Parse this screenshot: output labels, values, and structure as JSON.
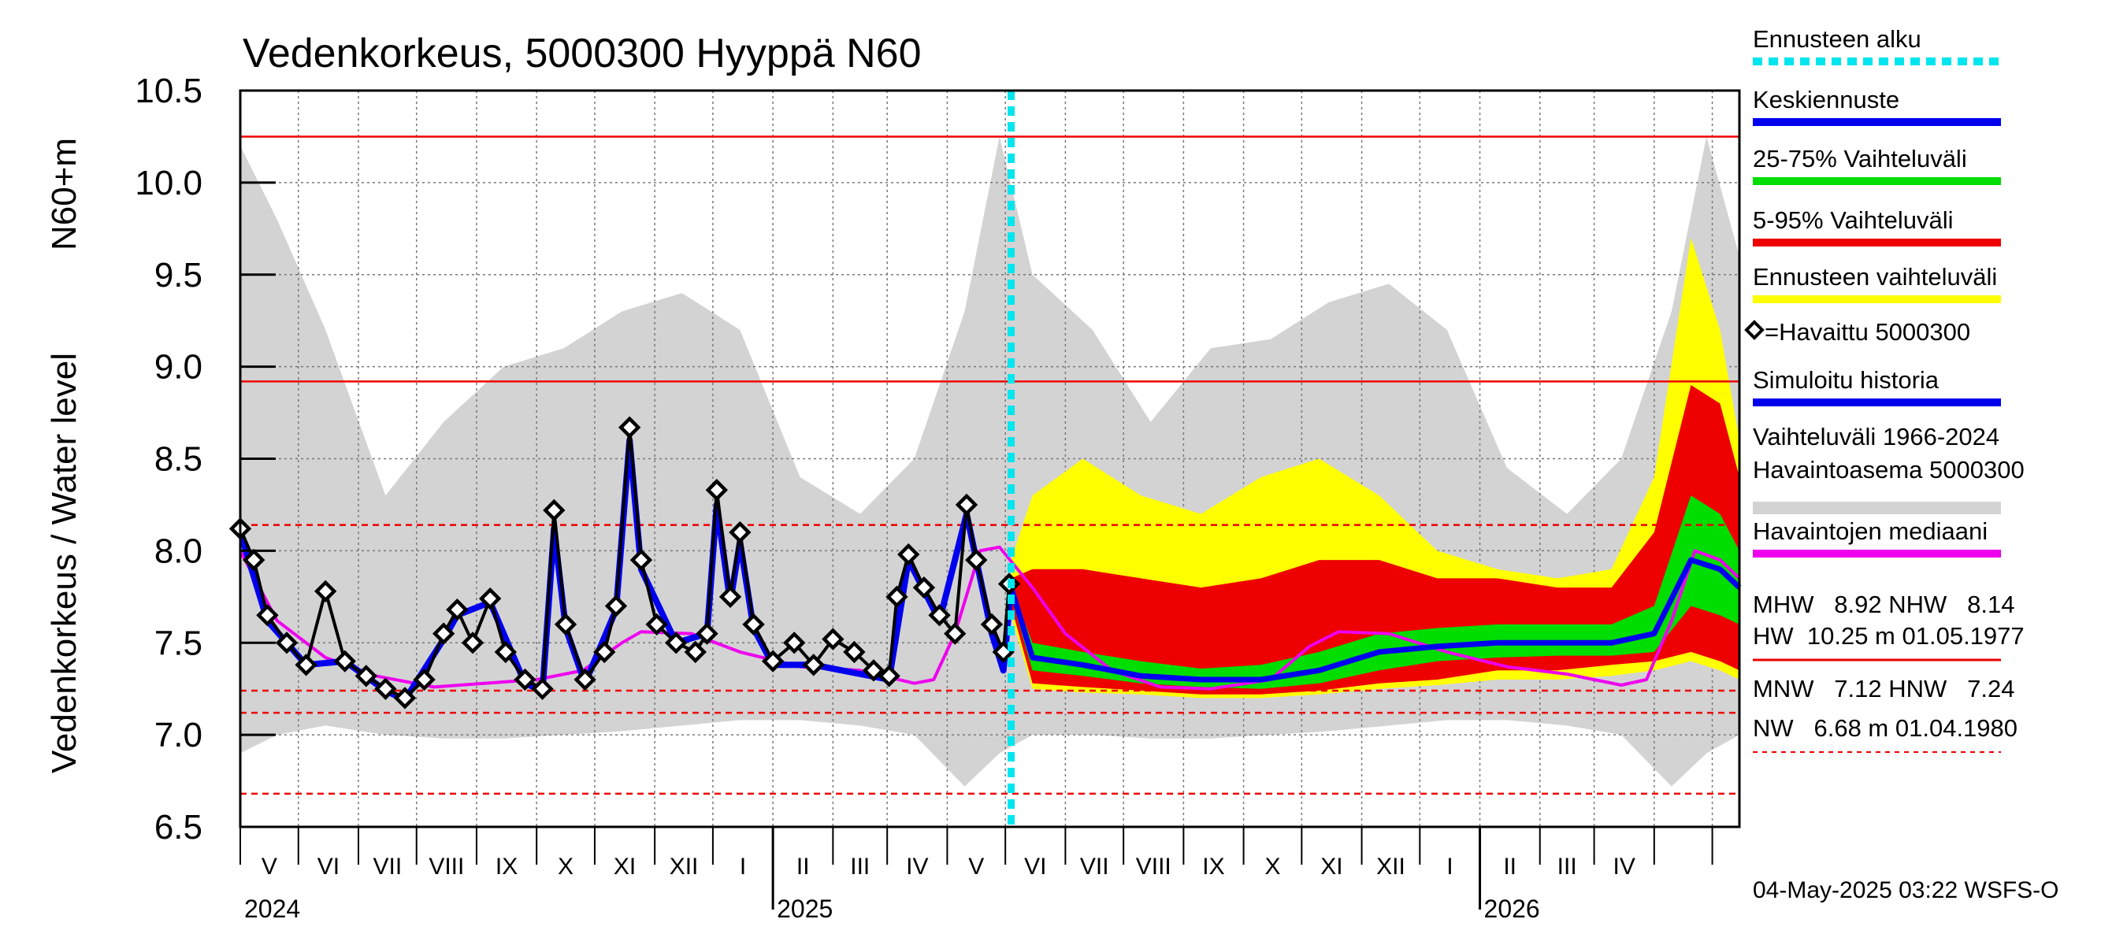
{
  "chart_data": {
    "type": "line",
    "title": "Vedenkorkeus, 5000300 Hyyppä N60",
    "ylabel": "Vedenkorkeus / Water level",
    "yunit": "N60+m",
    "ylim": [
      6.5,
      10.5
    ],
    "yticks": [
      "6.5",
      "7.0",
      "7.5",
      "8.0",
      "8.5",
      "9.0",
      "9.5",
      "10.0",
      "10.5"
    ],
    "xlim": [
      "2024-04-01",
      "2026-05-15"
    ],
    "grid": true,
    "forecast_start": "2025-05-04",
    "months": [
      "V",
      "VI",
      "VII",
      "VIII",
      "IX",
      "X",
      "XI",
      "XII",
      "I",
      "II",
      "III",
      "IV",
      "V",
      "VI",
      "VII",
      "VIII",
      "IX",
      "X",
      "XI",
      "XII",
      "I",
      "II",
      "III",
      "IV"
    ],
    "years": [
      "2024",
      "2025",
      "2026"
    ],
    "reference_lines": [
      {
        "name": "HW",
        "value": 10.25,
        "style": "solid"
      },
      {
        "name": "MHW",
        "value": 8.92,
        "style": "solid"
      },
      {
        "name": "NHW",
        "value": 8.14,
        "style": "dashed"
      },
      {
        "name": "HNW",
        "value": 7.24,
        "style": "dashed"
      },
      {
        "name": "MNW",
        "value": 7.12,
        "style": "dashed"
      },
      {
        "name": "NW",
        "value": 6.68,
        "style": "dashed"
      }
    ],
    "observed": [
      [
        "2024-04-01",
        8.12
      ],
      [
        "2024-04-08",
        7.95
      ],
      [
        "2024-04-15",
        7.65
      ],
      [
        "2024-04-25",
        7.5
      ],
      [
        "2024-05-05",
        7.38
      ],
      [
        "2024-05-15",
        7.78
      ],
      [
        "2024-05-25",
        7.4
      ],
      [
        "2024-06-05",
        7.32
      ],
      [
        "2024-06-15",
        7.25
      ],
      [
        "2024-06-25",
        7.2
      ],
      [
        "2024-07-05",
        7.3
      ],
      [
        "2024-07-15",
        7.55
      ],
      [
        "2024-07-22",
        7.68
      ],
      [
        "2024-07-30",
        7.5
      ],
      [
        "2024-08-08",
        7.74
      ],
      [
        "2024-08-16",
        7.45
      ],
      [
        "2024-08-26",
        7.3
      ],
      [
        "2024-09-04",
        7.25
      ],
      [
        "2024-09-10",
        8.22
      ],
      [
        "2024-09-16",
        7.6
      ],
      [
        "2024-09-26",
        7.3
      ],
      [
        "2024-10-06",
        7.45
      ],
      [
        "2024-10-12",
        7.7
      ],
      [
        "2024-10-19",
        8.67
      ],
      [
        "2024-10-25",
        7.95
      ],
      [
        "2024-11-02",
        7.6
      ],
      [
        "2024-11-12",
        7.5
      ],
      [
        "2024-11-22",
        7.45
      ],
      [
        "2024-11-28",
        7.55
      ],
      [
        "2024-12-03",
        8.33
      ],
      [
        "2024-12-10",
        7.75
      ],
      [
        "2024-12-15",
        8.1
      ],
      [
        "2024-12-22",
        7.6
      ],
      [
        "2025-01-01",
        7.4
      ],
      [
        "2025-01-12",
        7.5
      ],
      [
        "2025-01-22",
        7.38
      ],
      [
        "2025-02-01",
        7.52
      ],
      [
        "2025-02-12",
        7.45
      ],
      [
        "2025-02-22",
        7.35
      ],
      [
        "2025-03-02",
        7.32
      ],
      [
        "2025-03-06",
        7.75
      ],
      [
        "2025-03-12",
        7.98
      ],
      [
        "2025-03-20",
        7.8
      ],
      [
        "2025-03-28",
        7.65
      ],
      [
        "2025-04-05",
        7.55
      ],
      [
        "2025-04-11",
        8.25
      ],
      [
        "2025-04-16",
        7.95
      ],
      [
        "2025-04-24",
        7.6
      ],
      [
        "2025-04-30",
        7.45
      ],
      [
        "2025-05-03",
        7.82
      ]
    ],
    "simulated": [
      [
        "2024-04-01",
        8.1
      ],
      [
        "2024-04-15",
        7.62
      ],
      [
        "2024-05-05",
        7.38
      ],
      [
        "2024-05-25",
        7.4
      ],
      [
        "2024-06-15",
        7.24
      ],
      [
        "2024-06-25",
        7.19
      ],
      [
        "2024-07-15",
        7.52
      ],
      [
        "2024-07-22",
        7.65
      ],
      [
        "2024-08-08",
        7.72
      ],
      [
        "2024-08-26",
        7.28
      ],
      [
        "2024-09-04",
        7.24
      ],
      [
        "2024-09-10",
        8.12
      ],
      [
        "2024-09-16",
        7.58
      ],
      [
        "2024-09-26",
        7.28
      ],
      [
        "2024-10-12",
        7.68
      ],
      [
        "2024-10-19",
        8.6
      ],
      [
        "2024-10-25",
        7.9
      ],
      [
        "2024-11-12",
        7.5
      ],
      [
        "2024-11-28",
        7.55
      ],
      [
        "2024-12-03",
        8.25
      ],
      [
        "2024-12-10",
        7.72
      ],
      [
        "2024-12-15",
        8.05
      ],
      [
        "2024-12-22",
        7.58
      ],
      [
        "2025-01-01",
        7.38
      ],
      [
        "2025-01-22",
        7.38
      ],
      [
        "2025-03-02",
        7.3
      ],
      [
        "2025-03-12",
        7.95
      ],
      [
        "2025-03-28",
        7.62
      ],
      [
        "2025-04-11",
        8.2
      ],
      [
        "2025-04-24",
        7.55
      ],
      [
        "2025-04-30",
        7.35
      ],
      [
        "2025-05-04",
        7.8
      ]
    ],
    "median": [
      [
        "2024-04-01",
        8.0
      ],
      [
        "2024-04-20",
        7.62
      ],
      [
        "2024-05-15",
        7.42
      ],
      [
        "2024-06-10",
        7.32
      ],
      [
        "2024-07-10",
        7.26
      ],
      [
        "2024-08-05",
        7.28
      ],
      [
        "2024-09-01",
        7.3
      ],
      [
        "2024-09-25",
        7.35
      ],
      [
        "2024-10-15",
        7.5
      ],
      [
        "2024-10-25",
        7.56
      ],
      [
        "2024-11-20",
        7.55
      ],
      [
        "2024-12-15",
        7.45
      ],
      [
        "2025-01-15",
        7.37
      ],
      [
        "2025-02-15",
        7.35
      ],
      [
        "2025-03-15",
        7.28
      ],
      [
        "2025-03-25",
        7.3
      ],
      [
        "2025-04-05",
        7.55
      ],
      [
        "2025-04-18",
        8.0
      ],
      [
        "2025-04-28",
        8.02
      ],
      [
        "2025-05-15",
        7.8
      ],
      [
        "2025-06-01",
        7.55
      ],
      [
        "2025-06-25",
        7.35
      ],
      [
        "2025-07-20",
        7.26
      ],
      [
        "2025-08-15",
        7.25
      ],
      [
        "2025-09-15",
        7.3
      ],
      [
        "2025-10-05",
        7.48
      ],
      [
        "2025-10-20",
        7.56
      ],
      [
        "2025-11-15",
        7.55
      ],
      [
        "2025-12-15",
        7.45
      ],
      [
        "2026-01-15",
        7.37
      ],
      [
        "2026-02-15",
        7.33
      ],
      [
        "2026-03-15",
        7.27
      ],
      [
        "2026-03-28",
        7.3
      ],
      [
        "2026-04-10",
        7.62
      ],
      [
        "2026-04-22",
        8.0
      ],
      [
        "2026-05-05",
        7.95
      ],
      [
        "2026-05-15",
        7.85
      ]
    ],
    "forecast_mean": [
      [
        "2025-05-04",
        7.8
      ],
      [
        "2025-05-15",
        7.42
      ],
      [
        "2025-06-10",
        7.38
      ],
      [
        "2025-07-10",
        7.32
      ],
      [
        "2025-08-10",
        7.3
      ],
      [
        "2025-09-10",
        7.3
      ],
      [
        "2025-10-10",
        7.35
      ],
      [
        "2025-11-10",
        7.45
      ],
      [
        "2025-12-10",
        7.48
      ],
      [
        "2026-01-10",
        7.5
      ],
      [
        "2026-02-10",
        7.5
      ],
      [
        "2026-03-10",
        7.5
      ],
      [
        "2026-04-01",
        7.55
      ],
      [
        "2026-04-20",
        7.95
      ],
      [
        "2026-05-05",
        7.9
      ],
      [
        "2026-05-15",
        7.8
      ]
    ],
    "band_25_75": [
      [
        "2025-05-04",
        7.75,
        7.8
      ],
      [
        "2025-05-15",
        7.35,
        7.5
      ],
      [
        "2025-06-10",
        7.32,
        7.45
      ],
      [
        "2025-07-10",
        7.28,
        7.4
      ],
      [
        "2025-08-10",
        7.26,
        7.36
      ],
      [
        "2025-09-10",
        7.25,
        7.38
      ],
      [
        "2025-10-10",
        7.28,
        7.45
      ],
      [
        "2025-11-10",
        7.35,
        7.55
      ],
      [
        "2025-12-10",
        7.4,
        7.58
      ],
      [
        "2026-01-10",
        7.42,
        7.6
      ],
      [
        "2026-02-10",
        7.43,
        7.6
      ],
      [
        "2026-03-10",
        7.43,
        7.6
      ],
      [
        "2026-04-01",
        7.45,
        7.7
      ],
      [
        "2026-04-20",
        7.7,
        8.3
      ],
      [
        "2026-05-05",
        7.65,
        8.2
      ],
      [
        "2026-05-15",
        7.6,
        8.0
      ]
    ],
    "band_5_95": [
      [
        "2025-05-04",
        7.7,
        7.85
      ],
      [
        "2025-05-15",
        7.28,
        7.9
      ],
      [
        "2025-06-10",
        7.26,
        7.9
      ],
      [
        "2025-07-10",
        7.24,
        7.85
      ],
      [
        "2025-08-10",
        7.22,
        7.8
      ],
      [
        "2025-09-10",
        7.22,
        7.85
      ],
      [
        "2025-10-10",
        7.24,
        7.95
      ],
      [
        "2025-11-10",
        7.28,
        7.95
      ],
      [
        "2025-12-10",
        7.3,
        7.85
      ],
      [
        "2026-01-10",
        7.35,
        7.85
      ],
      [
        "2026-02-10",
        7.35,
        7.8
      ],
      [
        "2026-03-10",
        7.38,
        7.8
      ],
      [
        "2026-04-01",
        7.4,
        8.1
      ],
      [
        "2026-04-20",
        7.45,
        8.9
      ],
      [
        "2026-05-05",
        7.4,
        8.8
      ],
      [
        "2026-05-15",
        7.35,
        8.4
      ]
    ],
    "band_forecast": [
      [
        "2025-05-04",
        7.65,
        7.95
      ],
      [
        "2025-05-15",
        7.25,
        8.3
      ],
      [
        "2025-06-10",
        7.23,
        8.5
      ],
      [
        "2025-07-10",
        7.22,
        8.3
      ],
      [
        "2025-08-10",
        7.2,
        8.2
      ],
      [
        "2025-09-10",
        7.2,
        8.4
      ],
      [
        "2025-10-10",
        7.22,
        8.5
      ],
      [
        "2025-11-10",
        7.25,
        8.3
      ],
      [
        "2025-12-10",
        7.27,
        8.0
      ],
      [
        "2026-01-10",
        7.3,
        7.9
      ],
      [
        "2026-02-10",
        7.3,
        7.85
      ],
      [
        "2026-03-10",
        7.32,
        7.9
      ],
      [
        "2026-04-01",
        7.35,
        8.4
      ],
      [
        "2026-04-20",
        7.4,
        9.7
      ],
      [
        "2026-05-05",
        7.35,
        9.2
      ],
      [
        "2026-05-15",
        7.3,
        8.6
      ]
    ],
    "history_band": [
      [
        "2024-04-01",
        6.9,
        10.2
      ],
      [
        "2024-04-20",
        7.0,
        9.8
      ],
      [
        "2024-05-15",
        7.05,
        9.2
      ],
      [
        "2024-06-15",
        7.0,
        8.3
      ],
      [
        "2024-07-15",
        6.98,
        8.7
      ],
      [
        "2024-08-15",
        6.98,
        9.0
      ],
      [
        "2024-09-15",
        7.0,
        9.1
      ],
      [
        "2024-10-15",
        7.02,
        9.3
      ],
      [
        "2024-11-15",
        7.05,
        9.4
      ],
      [
        "2024-12-15",
        7.08,
        9.2
      ],
      [
        "2025-01-15",
        7.08,
        8.4
      ],
      [
        "2025-02-15",
        7.05,
        8.2
      ],
      [
        "2025-03-15",
        7.0,
        8.5
      ],
      [
        "2025-04-10",
        6.72,
        9.3
      ],
      [
        "2025-04-28",
        6.9,
        10.25
      ],
      [
        "2025-05-15",
        7.0,
        9.5
      ],
      [
        "2025-06-15",
        7.0,
        9.2
      ],
      [
        "2025-07-15",
        6.98,
        8.7
      ],
      [
        "2025-08-15",
        6.98,
        9.1
      ],
      [
        "2025-09-15",
        7.0,
        9.15
      ],
      [
        "2025-10-15",
        7.02,
        9.35
      ],
      [
        "2025-11-15",
        7.05,
        9.45
      ],
      [
        "2025-12-15",
        7.08,
        9.2
      ],
      [
        "2026-01-15",
        7.08,
        8.45
      ],
      [
        "2026-02-15",
        7.05,
        8.2
      ],
      [
        "2026-03-15",
        7.0,
        8.5
      ],
      [
        "2026-04-10",
        6.72,
        9.3
      ],
      [
        "2026-04-28",
        6.9,
        10.25
      ],
      [
        "2026-05-15",
        7.0,
        9.6
      ]
    ],
    "legend": [
      {
        "label": "Ennusteen alku",
        "color": "#00e5ee",
        "style": "dotted"
      },
      {
        "label": "Keskiennuste",
        "color": "#0000ee",
        "style": "solid"
      },
      {
        "label": "25-75% Vaihteluväli",
        "color": "#00dd00",
        "style": "solid"
      },
      {
        "label": "5-95% Vaihteluväli",
        "color": "#ee0000",
        "style": "solid"
      },
      {
        "label": "Ennusteen vaihteluväli",
        "color": "#ffff00",
        "style": "solid"
      },
      {
        "label": "=Havaittu 5000300",
        "color": "#000000",
        "style": "marker"
      },
      {
        "label": "Simuloitu historia",
        "color": "#0000ee",
        "style": "solid"
      },
      {
        "label": "Vaihteluväli 1966-2024",
        "label2": " Havaintoasema 5000300",
        "color": "#d3d3d3",
        "style": "solid"
      },
      {
        "label": "Havaintojen mediaani",
        "color": "#ee00ee",
        "style": "solid"
      }
    ],
    "stats": {
      "mhw_line": "MHW   8.92 NHW   8.14",
      "hw_line": "HW  10.25 m 01.05.1977",
      "mnw_line": "MNW   7.12 HNW   7.24",
      "nw_line": "NW   6.68 m 01.04.1980"
    },
    "footer": "04-May-2025 03:22 WSFS-O",
    "colors": {
      "history": "#d3d3d3",
      "forecast_band": "#ffff00",
      "band_5_95": "#ee0000",
      "band_25_75": "#00dd00",
      "mean": "#0000ee",
      "median": "#ee00ee",
      "forecast_start": "#00e5ee",
      "ref": "#ee0000",
      "observed": "#000000"
    }
  }
}
